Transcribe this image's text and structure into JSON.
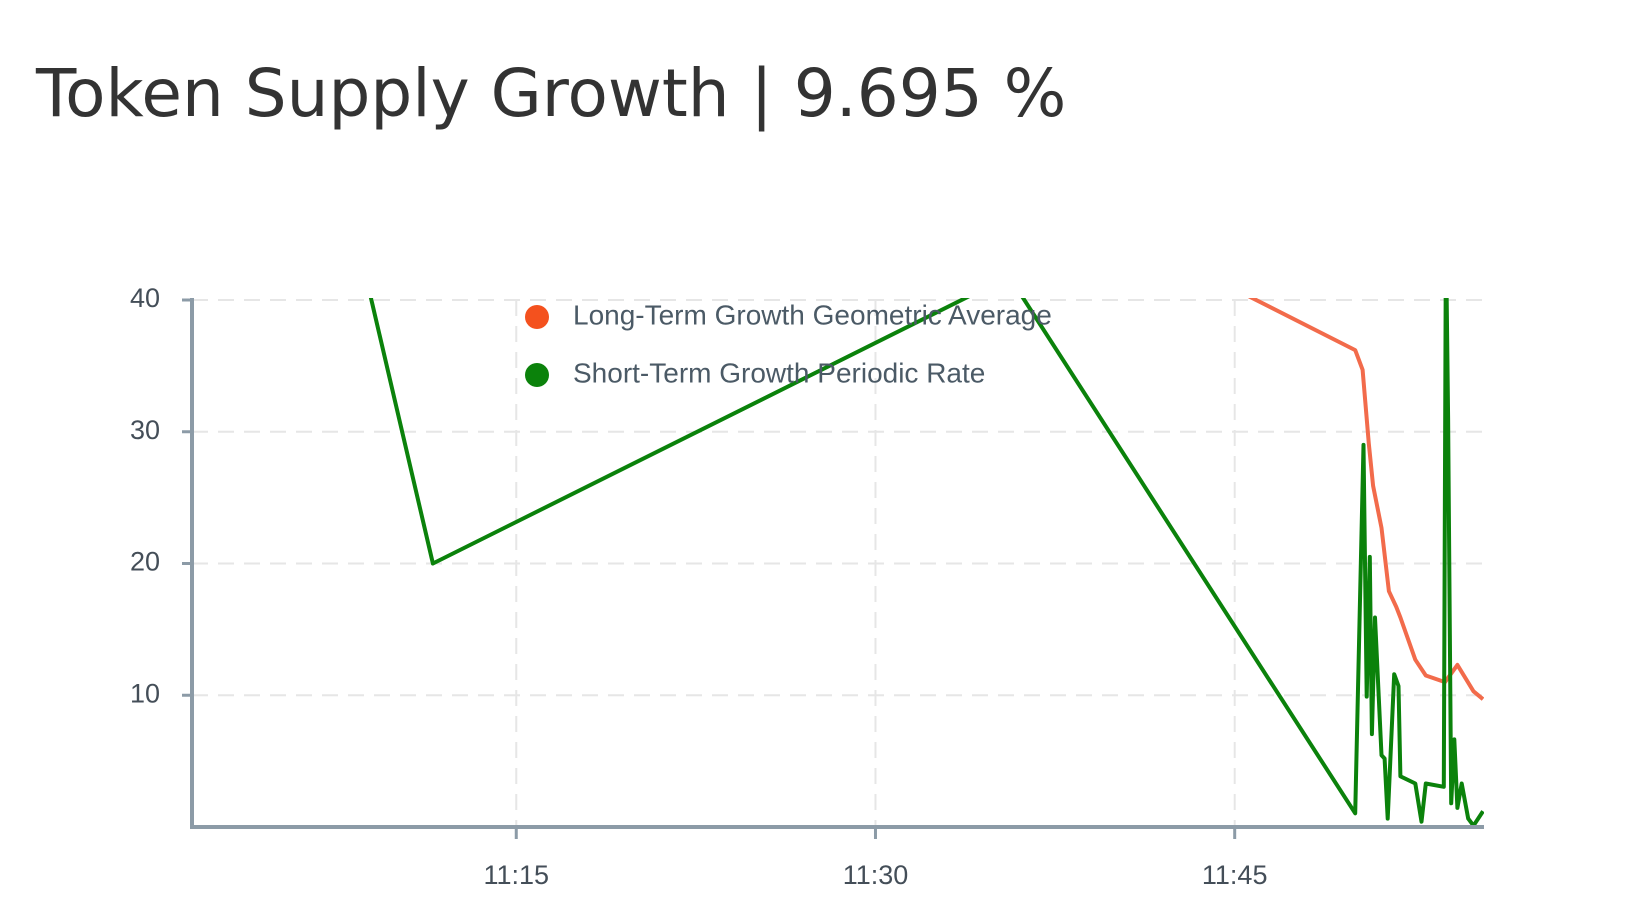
{
  "chart_data": {
    "type": "line",
    "title": "Token Supply Growth | 9.695 %",
    "xlim": [
      661.46,
      715.41
    ],
    "ylim": [
      0,
      40
    ],
    "xticks": [
      {
        "value": 675,
        "label": "11:15"
      },
      {
        "value": 690,
        "label": "11:30"
      },
      {
        "value": 705,
        "label": "11:45"
      }
    ],
    "yticks": [
      10,
      20,
      30,
      40
    ],
    "grid": true,
    "series": [
      {
        "name": "Long-Term Growth Geometric Average",
        "color": "#f26b4b",
        "legend_color": "#f4511e",
        "x": [
          701,
          710.03,
          710.34,
          710.6,
          710.78,
          711.13,
          711.44,
          711.75,
          711.92,
          712.54,
          712.98,
          713.78,
          714.3,
          714.97,
          715.37
        ],
        "values": [
          44.5,
          36.2,
          34.7,
          29.1,
          25.9,
          22.7,
          17.9,
          16.7,
          15.9,
          12.7,
          11.5,
          11.0,
          12.3,
          10.3,
          9.7
        ]
      },
      {
        "name": "Short-Term Growth Periodic Rate",
        "color": "#0b820b",
        "legend_color": "#0b820b",
        "x": [
          666,
          671.52,
          695.58,
          710.03,
          710.38,
          710.51,
          710.64,
          710.73,
          710.86,
          711.13,
          711.26,
          711.39,
          711.66,
          711.84,
          711.92,
          712.54,
          712.8,
          712.98,
          713.73,
          713.82,
          713.91,
          714.04,
          714.17,
          714.3,
          714.48,
          714.75,
          714.97,
          715.37
        ],
        "values": [
          63,
          20,
          41.8,
          1.04,
          29.0,
          9.9,
          20.5,
          7.05,
          15.9,
          5.45,
          5.2,
          0.64,
          11.6,
          10.7,
          3.85,
          3.3,
          0.4,
          3.3,
          3.05,
          45,
          31.1,
          1.8,
          6.65,
          1.45,
          3.3,
          0.64,
          0.1,
          1.2
        ]
      }
    ]
  }
}
